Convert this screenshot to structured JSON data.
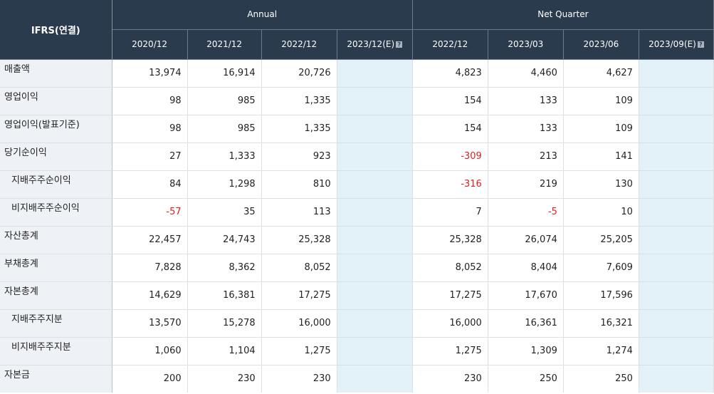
{
  "header": {
    "corner_label": "IFRS(연결)",
    "annual_label": "Annual",
    "quarter_label": "Net Quarter",
    "annual_periods": [
      "2020/12",
      "2021/12",
      "2022/12",
      "2023/12(E)"
    ],
    "quarter_periods": [
      "2022/12",
      "2023/03",
      "2023/06",
      "2023/09(E)"
    ],
    "estimate_marker": "?"
  },
  "colors": {
    "header_bg": "#2b3b4e",
    "label_bg": "#eef1f6",
    "estimate_bg": "#e3f2f8",
    "negative": "#e02020"
  },
  "rows": [
    {
      "label": "매출액",
      "sub": false,
      "annual": [
        "13,974",
        "16,914",
        "20,726",
        ""
      ],
      "quarter": [
        "4,823",
        "4,460",
        "4,627",
        ""
      ]
    },
    {
      "label": "영업이익",
      "sub": false,
      "annual": [
        "98",
        "985",
        "1,335",
        ""
      ],
      "quarter": [
        "154",
        "133",
        "109",
        ""
      ]
    },
    {
      "label": "영업이익(발표기준)",
      "sub": false,
      "annual": [
        "98",
        "985",
        "1,335",
        ""
      ],
      "quarter": [
        "154",
        "133",
        "109",
        ""
      ]
    },
    {
      "label": "당기순이익",
      "sub": false,
      "annual": [
        "27",
        "1,333",
        "923",
        ""
      ],
      "quarter": [
        "-309",
        "213",
        "141",
        ""
      ]
    },
    {
      "label": "지배주주순이익",
      "sub": true,
      "annual": [
        "84",
        "1,298",
        "810",
        ""
      ],
      "quarter": [
        "-316",
        "219",
        "130",
        ""
      ]
    },
    {
      "label": "비지배주주순이익",
      "sub": true,
      "annual": [
        "-57",
        "35",
        "113",
        ""
      ],
      "quarter": [
        "7",
        "-5",
        "10",
        ""
      ]
    },
    {
      "label": "자산총계",
      "sub": false,
      "annual": [
        "22,457",
        "24,743",
        "25,328",
        ""
      ],
      "quarter": [
        "25,328",
        "26,074",
        "25,205",
        ""
      ]
    },
    {
      "label": "부채총계",
      "sub": false,
      "annual": [
        "7,828",
        "8,362",
        "8,052",
        ""
      ],
      "quarter": [
        "8,052",
        "8,404",
        "7,609",
        ""
      ]
    },
    {
      "label": "자본총계",
      "sub": false,
      "annual": [
        "14,629",
        "16,381",
        "17,275",
        ""
      ],
      "quarter": [
        "17,275",
        "17,670",
        "17,596",
        ""
      ]
    },
    {
      "label": "지배주주지분",
      "sub": true,
      "annual": [
        "13,570",
        "15,278",
        "16,000",
        ""
      ],
      "quarter": [
        "16,000",
        "16,361",
        "16,321",
        ""
      ]
    },
    {
      "label": "비지배주주지분",
      "sub": true,
      "annual": [
        "1,060",
        "1,104",
        "1,275",
        ""
      ],
      "quarter": [
        "1,275",
        "1,309",
        "1,274",
        ""
      ]
    },
    {
      "label": "자본금",
      "sub": false,
      "annual": [
        "200",
        "230",
        "230",
        ""
      ],
      "quarter": [
        "230",
        "250",
        "250",
        ""
      ]
    }
  ]
}
